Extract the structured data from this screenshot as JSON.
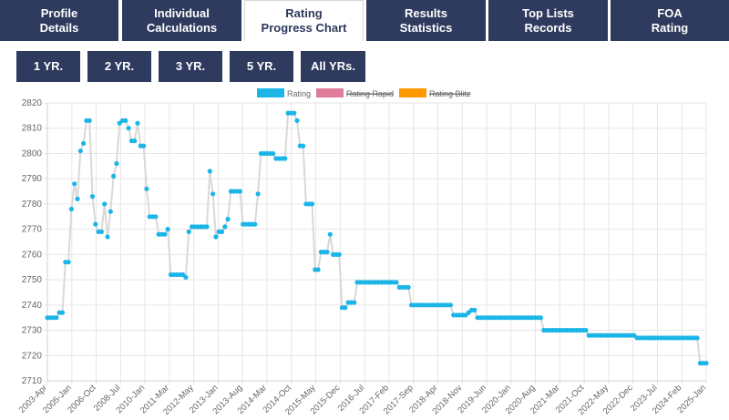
{
  "tabs": [
    {
      "line1": "Profile",
      "line2": "Details",
      "active": false
    },
    {
      "line1": "Individual",
      "line2": "Calculations",
      "active": false
    },
    {
      "line1": "Rating",
      "line2": "Progress Chart",
      "active": true
    },
    {
      "line1": "Results",
      "line2": "Statistics",
      "active": false
    },
    {
      "line1": "Top Lists",
      "line2": "Records",
      "active": false
    },
    {
      "line1": "FOA",
      "line2": "Rating",
      "active": false
    }
  ],
  "range_buttons": [
    "1 YR.",
    "2 YR.",
    "3 YR.",
    "5 YR.",
    "All YRs."
  ],
  "colors": {
    "nav": "#2e3a5e",
    "rating": "#1bb5e8",
    "rapid": "#e07b9a",
    "blitz": "#ff9900",
    "line": "#d9d9d9",
    "grid": "#e6e6e6"
  },
  "chart_data": {
    "type": "line",
    "title": "",
    "xlabel": "",
    "ylabel": "",
    "ylim": [
      2710,
      2820
    ],
    "yticks": [
      2710,
      2720,
      2730,
      2740,
      2750,
      2760,
      2770,
      2780,
      2790,
      2800,
      2810,
      2820
    ],
    "grid": true,
    "legend_position": "top-center",
    "legend": [
      {
        "name": "Rating",
        "color": "#1bb5e8",
        "hidden": false
      },
      {
        "name": "Rating Rapid",
        "color": "#e07b9a",
        "hidden": true
      },
      {
        "name": "Rating Blitz",
        "color": "#ff9900",
        "hidden": true
      }
    ],
    "xtick_labels": [
      "2003-Apr",
      "2005-Jan",
      "2006-Oct",
      "2008-Jul",
      "2010-Jan",
      "2011-Mar",
      "2012-May",
      "2013-Jan",
      "2013-Aug",
      "2014-Mar",
      "2014-Oct",
      "2015-May",
      "2015-Dec",
      "2016-Jul",
      "2017-Feb",
      "2017-Sep",
      "2018-Apr",
      "2018-Nov",
      "2019-Jun",
      "2020-Jan",
      "2020-Aug",
      "2021-Mar",
      "2021-Oct",
      "2022-May",
      "2022-Dec",
      "2023-Jul",
      "2024-Feb",
      "2025-Jan"
    ],
    "series": [
      {
        "name": "Rating",
        "values": [
          2735,
          2735,
          2735,
          2735,
          2737,
          2737,
          2757,
          2757,
          2778,
          2788,
          2782,
          2801,
          2804,
          2813,
          2813,
          2783,
          2772,
          2769,
          2769,
          2780,
          2767,
          2777,
          2791,
          2796,
          2812,
          2813,
          2813,
          2810,
          2805,
          2805,
          2812,
          2803,
          2803,
          2786,
          2775,
          2775,
          2775,
          2768,
          2768,
          2768,
          2770,
          2752,
          2752,
          2752,
          2752,
          2752,
          2751,
          2769,
          2771,
          2771,
          2771,
          2771,
          2771,
          2771,
          2793,
          2784,
          2767,
          2769,
          2769,
          2771,
          2774,
          2785,
          2785,
          2785,
          2785,
          2772,
          2772,
          2772,
          2772,
          2772,
          2784,
          2800,
          2800,
          2800,
          2800,
          2800,
          2798,
          2798,
          2798,
          2798,
          2816,
          2816,
          2816,
          2813,
          2803,
          2803,
          2780,
          2780,
          2780,
          2754,
          2754,
          2761,
          2761,
          2761,
          2768,
          2760,
          2760,
          2760,
          2739,
          2739,
          2741,
          2741,
          2741,
          2749,
          2749,
          2749,
          2749,
          2749,
          2749,
          2749,
          2749,
          2749,
          2749,
          2749,
          2749,
          2749,
          2749,
          2747,
          2747,
          2747,
          2747,
          2740,
          2740,
          2740,
          2740,
          2740,
          2740,
          2740,
          2740,
          2740,
          2740,
          2740,
          2740,
          2740,
          2740,
          2736,
          2736,
          2736,
          2736,
          2736,
          2737,
          2738,
          2738,
          2735,
          2735,
          2735,
          2735,
          2735,
          2735,
          2735,
          2735,
          2735,
          2735,
          2735,
          2735,
          2735,
          2735,
          2735,
          2735,
          2735,
          2735,
          2735,
          2735,
          2735,
          2735,
          2730,
          2730,
          2730,
          2730,
          2730,
          2730,
          2730,
          2730,
          2730,
          2730,
          2730,
          2730,
          2730,
          2730,
          2730,
          2728,
          2728,
          2728,
          2728,
          2728,
          2728,
          2728,
          2728,
          2728,
          2728,
          2728,
          2728,
          2728,
          2728,
          2728,
          2728,
          2727,
          2727,
          2727,
          2727,
          2727,
          2727,
          2727,
          2727,
          2727,
          2727,
          2727,
          2727,
          2727,
          2727,
          2727,
          2727,
          2727,
          2727,
          2727,
          2727,
          2727,
          2717,
          2717,
          2717
        ]
      }
    ]
  }
}
